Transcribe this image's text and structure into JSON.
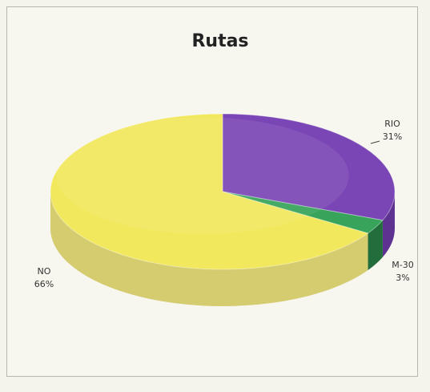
{
  "chart_data": {
    "type": "pie",
    "title": "Rutas",
    "slices": [
      {
        "label": "RIO",
        "value": 31,
        "percent_label": "31%",
        "color": "#7a46b5",
        "side_color": "#5e3290"
      },
      {
        "label": "M-30",
        "value": 3,
        "percent_label": "3%",
        "color": "#37a35b",
        "side_color": "#236d3c"
      },
      {
        "label": "NO",
        "value": 66,
        "percent_label": "66%",
        "color": "#f2e85d",
        "side_color": "#d5cc70"
      }
    ],
    "legend": false,
    "grid": false
  }
}
